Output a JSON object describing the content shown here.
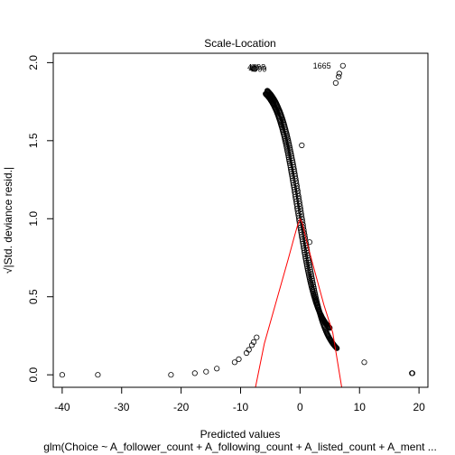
{
  "chart_data": {
    "type": "scatter",
    "title": "Scale-Location",
    "xlabel": "Predicted values",
    "ylabel": "√|Std. deviance resid.|",
    "subtitle": "glm(Choice ~ A_follower_count + A_following_count + A_listed_count + A_ment ...",
    "xlim": [
      -41.5,
      21.5
    ],
    "ylim": [
      -0.08,
      2.06
    ],
    "xticks": [
      "-40",
      "-30",
      "-20",
      "-10",
      "0",
      "10",
      "20"
    ],
    "yticks": [
      "0.0",
      "0.5",
      "1.0",
      "1.5",
      "2.0"
    ],
    "grid": false,
    "legend": "none",
    "point_color": "#000000",
    "smooth_color": "#ff0000",
    "outlier_labels": [
      {
        "text": "4098",
        "x": -5.8,
        "y": 1.97
      },
      {
        "text": "4099",
        "x": -5.6,
        "y": 1.96
      },
      {
        "text": "1665",
        "x": 5.2,
        "y": 1.98
      }
    ],
    "points_scattered": [
      {
        "x": -40,
        "y": 0.0
      },
      {
        "x": -34,
        "y": 0.0
      },
      {
        "x": -21.7,
        "y": 0.0
      },
      {
        "x": -17.7,
        "y": 0.01
      },
      {
        "x": -15.8,
        "y": 0.02
      },
      {
        "x": -14,
        "y": 0.04
      },
      {
        "x": -11,
        "y": 0.08
      },
      {
        "x": -10.3,
        "y": 0.1
      },
      {
        "x": -9,
        "y": 0.14
      },
      {
        "x": -8.6,
        "y": 0.16
      },
      {
        "x": -8.1,
        "y": 0.19
      },
      {
        "x": -7.8,
        "y": 0.21
      },
      {
        "x": -7.3,
        "y": 0.24
      },
      {
        "x": 10.8,
        "y": 0.08
      },
      {
        "x": 18.8,
        "y": 0.01
      },
      {
        "x": 18.9,
        "y": 0.01
      },
      {
        "x": 0.3,
        "y": 1.47
      },
      {
        "x": 1.6,
        "y": 0.85
      },
      {
        "x": -8.0,
        "y": 1.97
      },
      {
        "x": -7.8,
        "y": 1.96
      },
      {
        "x": -7.6,
        "y": 1.96
      },
      {
        "x": -7.4,
        "y": 1.97
      },
      {
        "x": 7.2,
        "y": 1.98
      },
      {
        "x": 6.6,
        "y": 1.93
      },
      {
        "x": 6.5,
        "y": 1.91
      },
      {
        "x": 6.0,
        "y": 1.87
      }
    ],
    "curve_branches": [
      {
        "name": "left",
        "x_start": -5.5,
        "x_end": 6.2,
        "y_start": 1.82,
        "y_end": 0.17
      },
      {
        "name": "right",
        "x_start": -5.8,
        "x_end": 5.0,
        "y_start": 0.3,
        "y_end": 1.8
      }
    ],
    "smooth_line": {
      "x": [
        -7.5,
        -6,
        -4,
        -2,
        -1,
        -0.4,
        0,
        0.4,
        1,
        2,
        4,
        5.5,
        7
      ],
      "y": [
        -0.08,
        0.2,
        0.47,
        0.74,
        0.88,
        0.96,
        1.0,
        0.97,
        0.87,
        0.73,
        0.45,
        0.27,
        -0.08
      ]
    }
  }
}
